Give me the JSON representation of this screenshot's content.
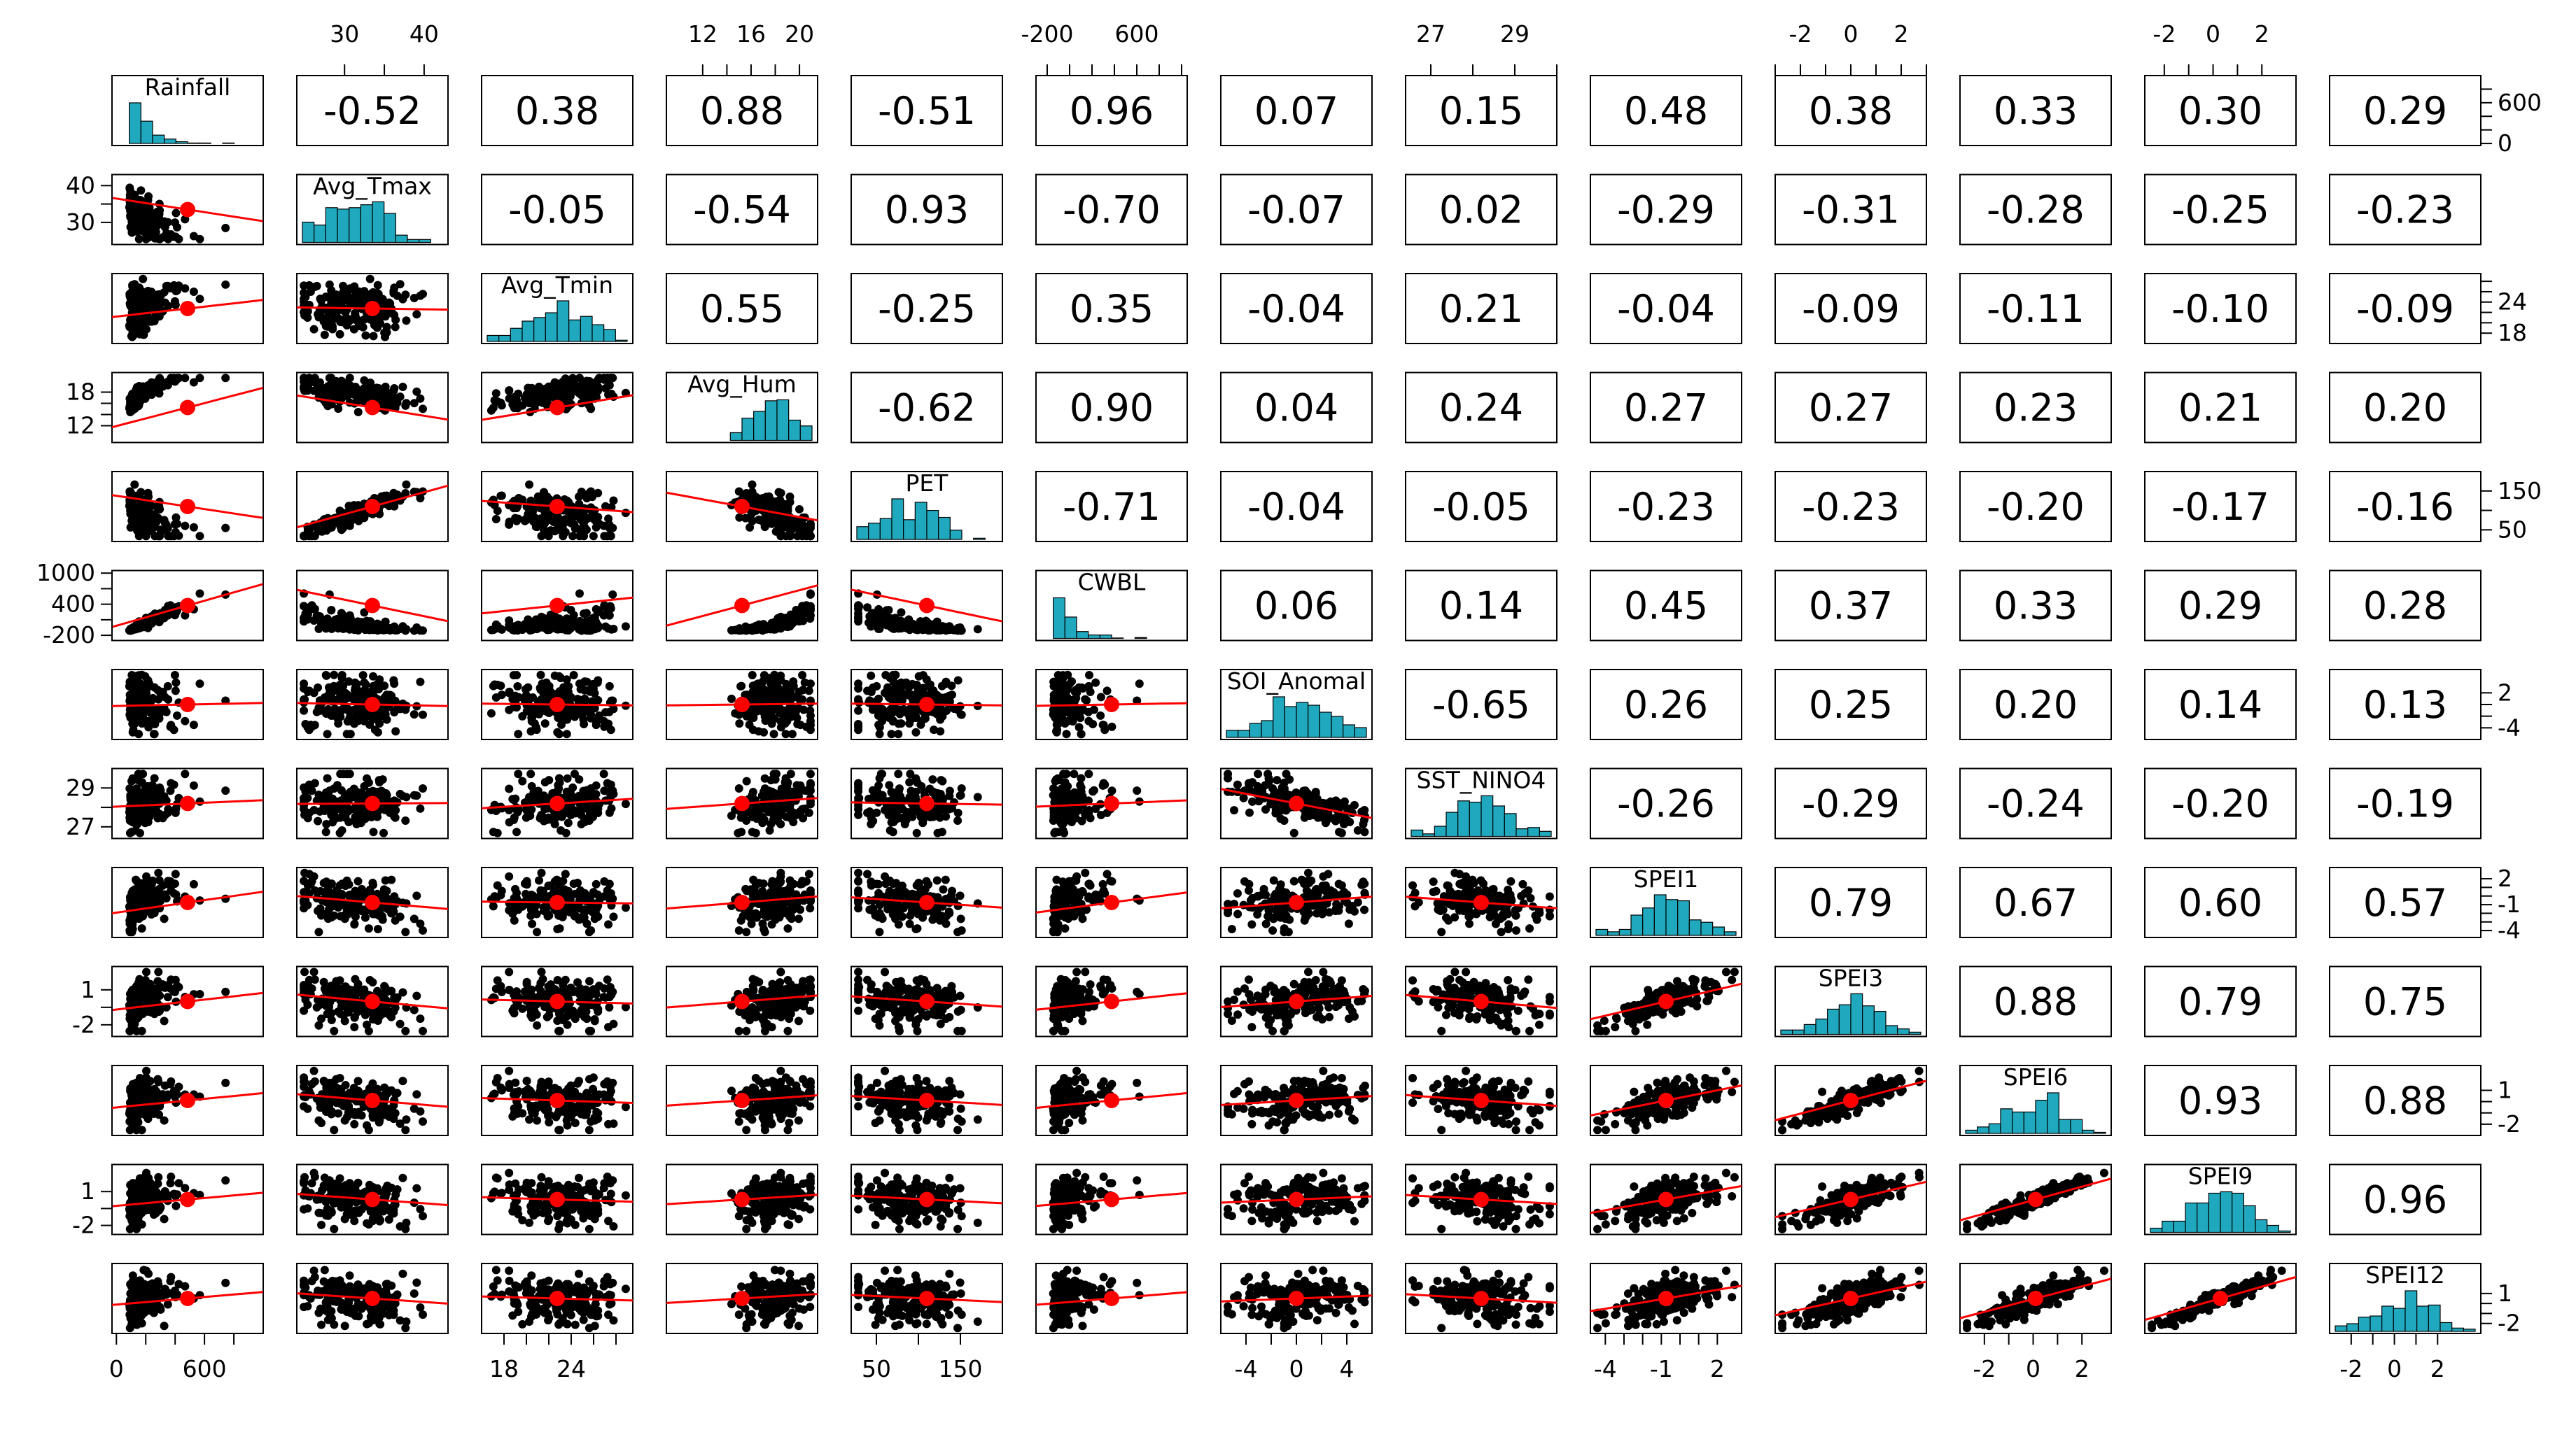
{
  "chart_data": {
    "type": "scatter",
    "title": "",
    "variables": [
      "Rainfall",
      "Avg_Tmax",
      "Avg_Tmin",
      "Avg_Hum",
      "PET",
      "CWBL",
      "SOI_Anomaly",
      "SST_NINO4",
      "SPEI1",
      "SPEI3",
      "SPEI6",
      "SPEI9",
      "SPEI12"
    ],
    "diagonal_labels": [
      "Rainfall",
      "Avg_Tmax",
      "Avg_Tmin",
      "Avg_Hum",
      "PET",
      "CWBL",
      "SOI_Anomal",
      "SST_NINO4",
      "SPEI1",
      "SPEI3",
      "SPEI6",
      "SPEI9",
      "SPEI12"
    ],
    "correlations": [
      [
        null,
        -0.52,
        0.38,
        0.88,
        -0.51,
        0.96,
        0.07,
        0.15,
        0.48,
        0.38,
        0.33,
        0.3,
        0.29
      ],
      [
        null,
        null,
        -0.05,
        -0.54,
        0.93,
        -0.7,
        -0.07,
        0.02,
        -0.29,
        -0.31,
        -0.28,
        -0.25,
        -0.23
      ],
      [
        null,
        null,
        null,
        0.55,
        -0.25,
        0.35,
        -0.04,
        0.21,
        -0.04,
        -0.09,
        -0.11,
        -0.1,
        -0.09
      ],
      [
        null,
        null,
        null,
        null,
        -0.62,
        0.9,
        0.04,
        0.24,
        0.27,
        0.27,
        0.23,
        0.21,
        0.2
      ],
      [
        null,
        null,
        null,
        null,
        null,
        -0.71,
        -0.04,
        -0.05,
        -0.23,
        -0.23,
        -0.2,
        -0.17,
        -0.16
      ],
      [
        null,
        null,
        null,
        null,
        null,
        null,
        0.06,
        0.14,
        0.45,
        0.37,
        0.33,
        0.29,
        0.28
      ],
      [
        null,
        null,
        null,
        null,
        null,
        null,
        null,
        -0.65,
        0.26,
        0.25,
        0.2,
        0.14,
        0.13
      ],
      [
        null,
        null,
        null,
        null,
        null,
        null,
        null,
        null,
        -0.26,
        -0.29,
        -0.24,
        -0.2,
        -0.19
      ],
      [
        null,
        null,
        null,
        null,
        null,
        null,
        null,
        null,
        null,
        0.79,
        0.67,
        0.6,
        0.57
      ],
      [
        null,
        null,
        null,
        null,
        null,
        null,
        null,
        null,
        null,
        null,
        0.88,
        0.79,
        0.75
      ],
      [
        null,
        null,
        null,
        null,
        null,
        null,
        null,
        null,
        null,
        null,
        null,
        0.93,
        0.88
      ],
      [
        null,
        null,
        null,
        null,
        null,
        null,
        null,
        null,
        null,
        null,
        null,
        null,
        0.96
      ],
      [
        null,
        null,
        null,
        null,
        null,
        null,
        null,
        null,
        null,
        null,
        null,
        null,
        null
      ]
    ],
    "ranges": [
      [
        -30,
        1000
      ],
      [
        24,
        43
      ],
      [
        16,
        29.5
      ],
      [
        9,
        21.5
      ],
      [
        20,
        200
      ],
      [
        -300,
        1050
      ],
      [
        -6,
        6
      ],
      [
        26.4,
        30
      ],
      [
        -4.8,
        3.3
      ],
      [
        -3,
        3
      ],
      [
        -3,
        3.2
      ],
      [
        -2.8,
        3.4
      ],
      [
        -3,
        4
      ]
    ],
    "top_axis": [
      {
        "col": 1,
        "ticks": [
          30,
          35,
          40
        ],
        "labels": [
          "30",
          "40"
        ],
        "label_values": [
          30,
          40
        ]
      },
      {
        "col": 3,
        "ticks": [
          12,
          14,
          16,
          18,
          20
        ],
        "labels": [
          "12",
          "16",
          "20"
        ],
        "label_values": [
          12,
          16,
          20
        ]
      },
      {
        "col": 5,
        "ticks": [
          -200,
          0,
          200,
          400,
          600,
          800,
          1000
        ],
        "labels": [
          "-200",
          "600"
        ],
        "label_values": [
          -200,
          600
        ]
      },
      {
        "col": 7,
        "ticks": [
          27,
          28,
          29,
          30
        ],
        "labels": [
          "27",
          "29"
        ],
        "label_values": [
          27,
          29
        ]
      },
      {
        "col": 9,
        "ticks": [
          -3,
          -2,
          -1,
          0,
          1,
          2,
          3
        ],
        "labels": [
          "-2",
          "0",
          "2"
        ],
        "label_values": [
          -2,
          0,
          2
        ]
      },
      {
        "col": 11,
        "ticks": [
          -2,
          -1,
          0,
          1,
          2
        ],
        "labels": [
          "-2",
          "0",
          "2"
        ],
        "label_values": [
          -2,
          0,
          2
        ]
      }
    ],
    "bottom_axis": [
      {
        "col": 0,
        "ticks": [
          0,
          200,
          400,
          600,
          800
        ],
        "labels": [
          "0",
          "600"
        ],
        "label_values": [
          0,
          600
        ]
      },
      {
        "col": 2,
        "ticks": [
          18,
          20,
          22,
          24,
          26,
          28
        ],
        "labels": [
          "18",
          "24"
        ],
        "label_values": [
          18,
          24
        ]
      },
      {
        "col": 4,
        "ticks": [
          50,
          100,
          150
        ],
        "labels": [
          "50",
          "150"
        ],
        "label_values": [
          50,
          150
        ]
      },
      {
        "col": 6,
        "ticks": [
          -4,
          -2,
          0,
          2,
          4
        ],
        "labels": [
          "-4",
          "0",
          "4"
        ],
        "label_values": [
          -4,
          0,
          4
        ]
      },
      {
        "col": 8,
        "ticks": [
          -4,
          -3,
          -2,
          -1,
          0,
          1,
          2
        ],
        "labels": [
          "-4",
          "-1",
          "2"
        ],
        "label_values": [
          -4,
          -1,
          2
        ]
      },
      {
        "col": 10,
        "ticks": [
          -2,
          -1,
          0,
          1,
          2
        ],
        "labels": [
          "-2",
          "0",
          "2"
        ],
        "label_values": [
          -2,
          0,
          2
        ]
      },
      {
        "col": 12,
        "ticks": [
          -2,
          -1,
          0,
          1,
          2
        ],
        "labels": [
          "-2",
          "0",
          "2"
        ],
        "label_values": [
          -2,
          0,
          2
        ]
      }
    ],
    "left_axis": [
      {
        "row": 1,
        "ticks": [
          30,
          35,
          40
        ],
        "labels": [
          "40",
          "30"
        ],
        "label_values": [
          40,
          30
        ]
      },
      {
        "row": 3,
        "ticks": [
          12,
          14,
          16,
          18
        ],
        "labels": [
          "18",
          "12"
        ],
        "label_values": [
          18,
          12
        ]
      },
      {
        "row": 5,
        "ticks": [
          -200,
          100,
          400,
          700,
          1000
        ],
        "labels": [
          "1000",
          "400",
          "-200"
        ],
        "label_values": [
          1000,
          400,
          -200
        ]
      },
      {
        "row": 7,
        "ticks": [
          27,
          28,
          29
        ],
        "labels": [
          "29",
          "27"
        ],
        "label_values": [
          29,
          27
        ]
      },
      {
        "row": 9,
        "ticks": [
          -2,
          -0.5,
          1
        ],
        "labels": [
          "1",
          "-2"
        ],
        "label_values": [
          1,
          -2
        ]
      },
      {
        "row": 11,
        "ticks": [
          -2,
          -0.5,
          1
        ],
        "labels": [
          "1",
          "-2"
        ],
        "label_values": [
          1,
          -2
        ]
      }
    ],
    "right_axis": [
      {
        "row": 0,
        "ticks": [
          0,
          200,
          400,
          600,
          800
        ],
        "labels": [
          "600",
          "0"
        ],
        "label_values": [
          600,
          0
        ]
      },
      {
        "row": 2,
        "ticks": [
          18,
          20,
          22,
          24,
          26,
          28
        ],
        "labels": [
          "24",
          "18"
        ],
        "label_values": [
          24,
          18
        ]
      },
      {
        "row": 4,
        "ticks": [
          50,
          100,
          150
        ],
        "labels": [
          "150",
          "50"
        ],
        "label_values": [
          150,
          50
        ]
      },
      {
        "row": 6,
        "ticks": [
          -4,
          -2,
          0,
          2
        ],
        "labels": [
          "2",
          "-4"
        ],
        "label_values": [
          2,
          -4
        ]
      },
      {
        "row": 8,
        "ticks": [
          -4,
          -3,
          -2,
          -1,
          0,
          1,
          2
        ],
        "labels": [
          "2",
          "-1",
          "-4"
        ],
        "label_values": [
          2,
          -1,
          -4
        ]
      },
      {
        "row": 10,
        "ticks": [
          -2,
          -1,
          0,
          1
        ],
        "labels": [
          "1",
          "-2"
        ],
        "label_values": [
          1,
          -2
        ]
      },
      {
        "row": 12,
        "ticks": [
          -2,
          -1,
          0,
          1
        ],
        "labels": [
          "1",
          "-2"
        ],
        "label_values": [
          1,
          -2
        ]
      }
    ],
    "histogram_color": "#20a9be",
    "point_color": "#000000",
    "fit_line_color": "#ff0000",
    "center_point_color": "#ff0000",
    "grid": false,
    "legend": "none"
  }
}
